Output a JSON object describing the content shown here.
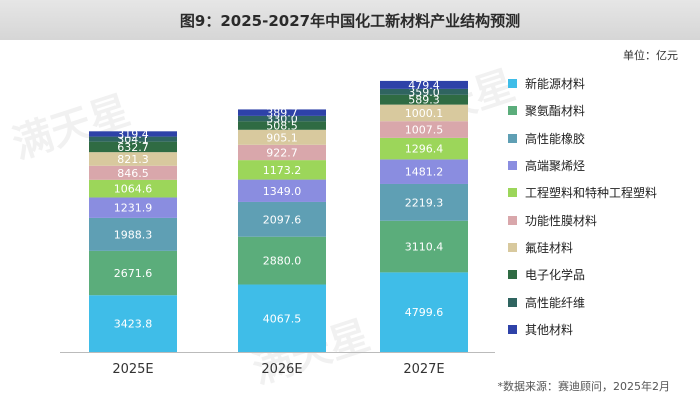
{
  "header": {
    "title": "图9：2025-2027年中国化工新材料产业结构预测"
  },
  "unit_label": "单位：亿元",
  "source_label": "*数据来源：赛迪顾问，2025年2月",
  "watermark": "满天星",
  "chart_data": {
    "type": "bar",
    "stacked": true,
    "categories": [
      "2025E",
      "2026E",
      "2027E"
    ],
    "series": [
      {
        "name": "新能源材料",
        "color": "#3fbde8",
        "values": [
          3423.8,
          4067.5,
          4799.6
        ]
      },
      {
        "name": "聚氨酯材料",
        "color": "#5bad7b",
        "values": [
          2671.6,
          2880.0,
          3110.4
        ]
      },
      {
        "name": "高性能橡胶",
        "color": "#5f9fb4",
        "values": [
          1988.3,
          2097.6,
          2219.3
        ]
      },
      {
        "name": "高端聚烯烃",
        "color": "#8a8de0",
        "values": [
          1231.9,
          1349.0,
          1481.2
        ]
      },
      {
        "name": "工程塑料和特种工程塑料",
        "color": "#9cd65a",
        "values": [
          1064.6,
          1173.2,
          1296.4
        ]
      },
      {
        "name": "功能性膜材料",
        "color": "#d9a7ab",
        "values": [
          846.5,
          922.7,
          1007.5
        ]
      },
      {
        "name": "氟硅材料",
        "color": "#d8c99e",
        "values": [
          821.3,
          905.1,
          1000.1
        ]
      },
      {
        "name": "电子化学品",
        "color": "#2f6b43",
        "values": [
          632.7,
          508.5,
          589.3
        ]
      },
      {
        "name": "高性能纤维",
        "color": "#2f6460",
        "values": [
          304.1,
          330.0,
          359.0
        ]
      },
      {
        "name": "其他材料",
        "color": "#2e42a8",
        "values": [
          319.4,
          389.7,
          479.4
        ]
      }
    ],
    "ylim": [
      0,
      17000
    ],
    "legend_position": "right",
    "grid": false
  }
}
